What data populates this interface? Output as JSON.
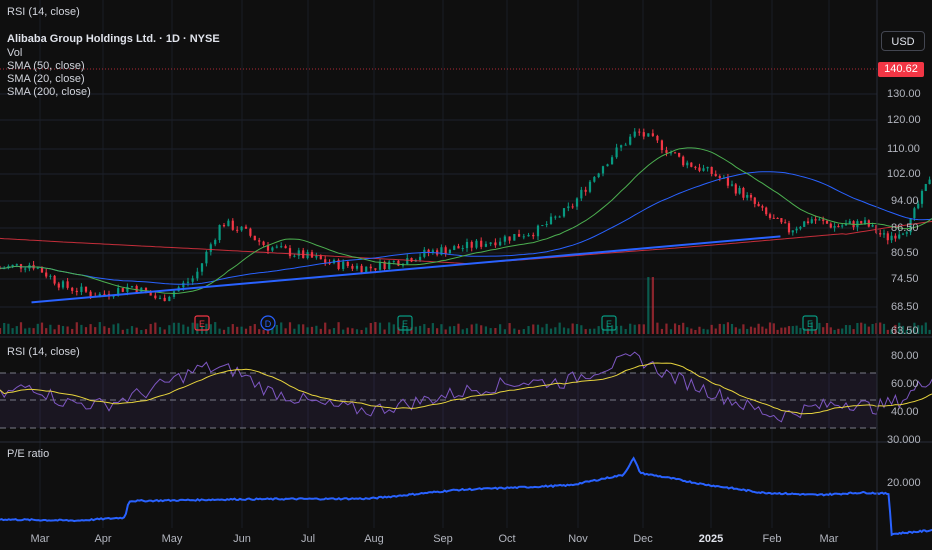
{
  "top_label": "RSI (14, close)",
  "main": {
    "title": "Alibaba Group Holdings Ltd. · 1D · NYSE",
    "indicators": [
      "Vol",
      "SMA (50, close)",
      "SMA (20, close)",
      "SMA (200, close)"
    ],
    "currency": "USD",
    "last_price": "140.62",
    "price_ticks": [
      "130.00",
      "120.00",
      "110.00",
      "102.00",
      "94.00",
      "86.50",
      "80.50",
      "74.50",
      "68.50",
      "63.50"
    ],
    "events": [
      "E",
      "D",
      "E",
      "E",
      "E"
    ]
  },
  "rsi_panel": {
    "label": "RSI (14, close)",
    "ticks": [
      "80.00",
      "60.00",
      "40.00",
      "30.000"
    ]
  },
  "pe_panel": {
    "label": "P/E ratio",
    "ticks": [
      "20.000"
    ]
  },
  "x_axis": {
    "months": [
      "Mar",
      "Apr",
      "May",
      "Jun",
      "Jul",
      "Aug",
      "Sep",
      "Oct",
      "Nov",
      "Dec",
      "2025",
      "Feb",
      "Mar"
    ]
  },
  "colors": {
    "up": "#089981",
    "down": "#f23645",
    "sma20": "#4caf50",
    "sma50": "#2962ff",
    "sma200": "#f23645",
    "rsi": "#7e57c2",
    "rsi_ma": "#e6d33d",
    "pe": "#2962ff",
    "trendline": "#2962ff"
  },
  "chart_data": {
    "type": "candlestick",
    "trendline": [
      [
        0.5,
        69.5
      ],
      [
        11.85,
        84.5
      ]
    ],
    "price_key": [
      [
        0,
        77
      ],
      [
        0.5,
        78
      ],
      [
        1,
        73
      ],
      [
        1.5,
        71
      ],
      [
        2,
        73
      ],
      [
        2.4,
        70
      ],
      [
        2.9,
        75
      ],
      [
        3.3,
        88
      ],
      [
        3.6,
        86
      ],
      [
        4,
        82
      ],
      [
        4.5,
        80
      ],
      [
        5,
        78
      ],
      [
        5.5,
        77
      ],
      [
        6,
        79
      ],
      [
        6.5,
        81
      ],
      [
        7,
        82
      ],
      [
        7.5,
        84
      ],
      [
        8,
        86
      ],
      [
        8.5,
        92
      ],
      [
        9.0,
        105
      ],
      [
        9.5,
        116
      ],
      [
        9.8,
        112
      ],
      [
        10.2,
        106
      ],
      [
        10.7,
        102
      ],
      [
        11.2,
        96
      ],
      [
        11.6,
        90
      ],
      [
        12.0,
        86
      ],
      [
        12.4,
        89
      ],
      [
        12.8,
        87
      ],
      [
        13.3,
        88
      ],
      [
        13.7,
        84
      ],
      [
        14.1,
        87
      ],
      [
        14.4,
        98
      ],
      [
        14.7,
        112
      ],
      [
        15.0,
        127
      ],
      [
        15.3,
        136
      ],
      [
        15.6,
        142
      ],
      [
        16.0,
        134
      ],
      [
        16.3,
        132
      ],
      [
        16.6,
        140.6
      ]
    ],
    "volume_spikes": [
      [
        9.7,
        18
      ],
      [
        15.3,
        20
      ],
      [
        15.9,
        12
      ]
    ],
    "rsi_key": [
      [
        0,
        52
      ],
      [
        0.5,
        60
      ],
      [
        1,
        48
      ],
      [
        1.6,
        46
      ],
      [
        2.2,
        55
      ],
      [
        3.0,
        72
      ],
      [
        3.5,
        70
      ],
      [
        4.0,
        56
      ],
      [
        4.8,
        46
      ],
      [
        5.5,
        42
      ],
      [
        6.2,
        48
      ],
      [
        7.0,
        56
      ],
      [
        7.7,
        62
      ],
      [
        8.4,
        62
      ],
      [
        9.0,
        72
      ],
      [
        9.5,
        79
      ],
      [
        10.0,
        66
      ],
      [
        10.6,
        56
      ],
      [
        11.2,
        46
      ],
      [
        11.8,
        38
      ],
      [
        12.4,
        44
      ],
      [
        13.0,
        48
      ],
      [
        13.5,
        44
      ],
      [
        14.0,
        50
      ],
      [
        14.5,
        66
      ],
      [
        15.0,
        76
      ],
      [
        15.4,
        80
      ],
      [
        15.8,
        70
      ],
      [
        16.2,
        66
      ],
      [
        16.6,
        67
      ]
    ],
    "pe_key": [
      [
        0,
        14.2
      ],
      [
        1.2,
        14.0
      ],
      [
        1.9,
        14.5
      ],
      [
        1.95,
        17.2
      ],
      [
        3.5,
        17.5
      ],
      [
        5.5,
        17.6
      ],
      [
        6.8,
        19.0
      ],
      [
        8.5,
        19.8
      ],
      [
        9.3,
        21.5
      ],
      [
        9.45,
        24.2
      ],
      [
        9.55,
        21.8
      ],
      [
        10.5,
        20.0
      ],
      [
        11.5,
        18.6
      ],
      [
        12.5,
        18.2
      ],
      [
        13.3,
        18.6
      ],
      [
        13.75,
        18.4
      ],
      [
        13.8,
        11.8
      ],
      [
        14.5,
        12.4
      ],
      [
        15.0,
        14.5
      ],
      [
        15.5,
        18.0
      ],
      [
        15.9,
        20.5
      ],
      [
        16.3,
        20.0
      ],
      [
        16.6,
        20.2
      ]
    ]
  }
}
